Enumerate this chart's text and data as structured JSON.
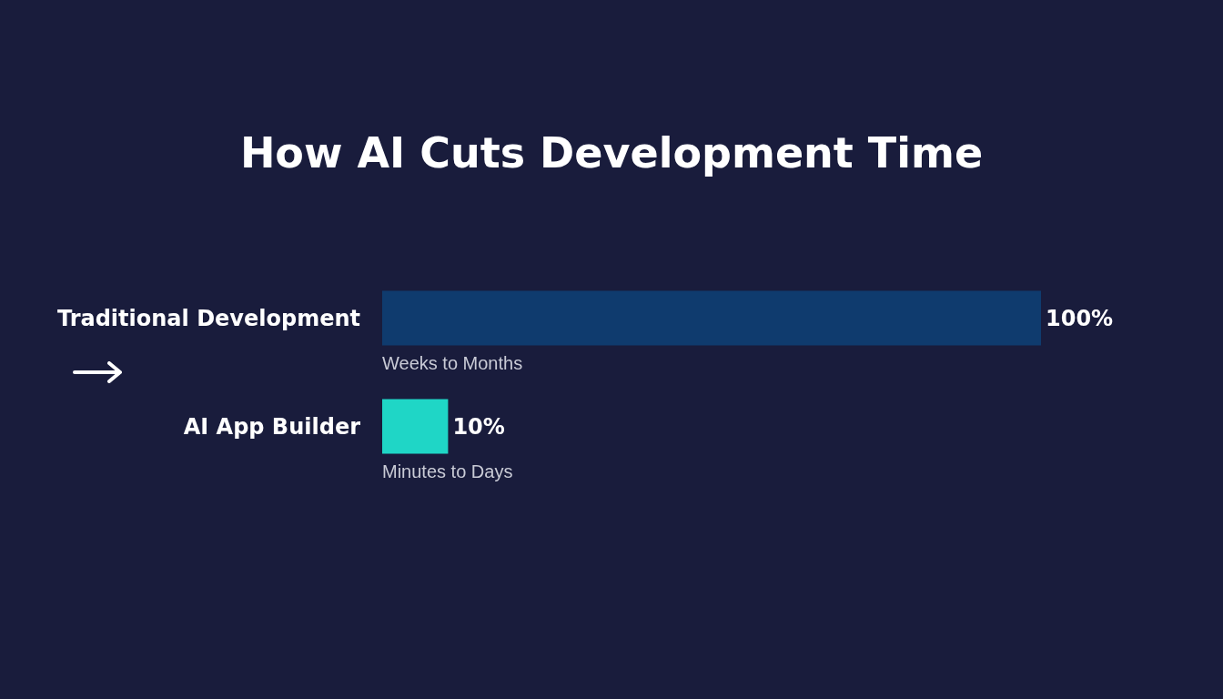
{
  "chart_data": {
    "type": "bar",
    "orientation": "horizontal",
    "title": "How AI Cuts Development Time",
    "categories": [
      "Traditional Development",
      "AI App Builder"
    ],
    "values": [
      100,
      10
    ],
    "colors": [
      "#0f3b6e",
      "#1fd6c6"
    ],
    "value_labels": [
      "100%",
      "10%"
    ],
    "xlim": [
      0,
      100
    ],
    "tick_labels": "y",
    "grid": false,
    "annotations": [
      "Weeks to Months",
      "Minutes to Days"
    ]
  }
}
